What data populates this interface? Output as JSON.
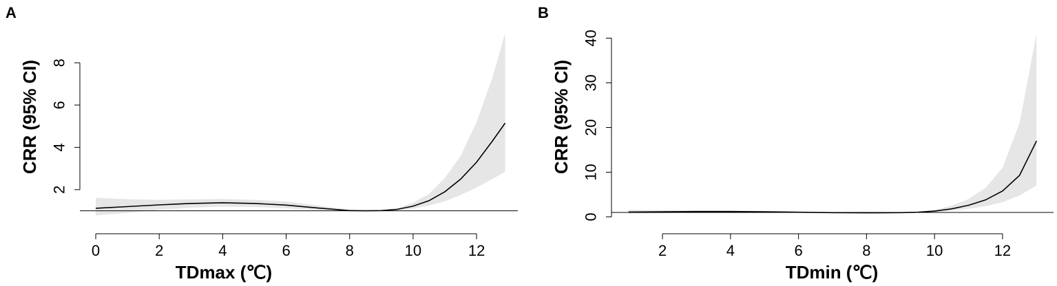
{
  "chart_data": [
    {
      "panel": "A",
      "type": "line",
      "xlabel": "TDmax (℃)",
      "ylabel": "CRR (95% CI)",
      "xlim": [
        -0.5,
        13.3
      ],
      "ylim": [
        0.5,
        9.8
      ],
      "xticks": [
        0,
        2,
        4,
        6,
        8,
        10,
        12
      ],
      "yticks": [
        2,
        4,
        6,
        8
      ],
      "reference_y": 1,
      "series": [
        {
          "x": [
            0,
            1,
            2,
            3,
            4,
            5,
            6,
            7,
            8,
            8.5,
            9,
            9.5,
            10,
            10.5,
            11,
            11.5,
            12,
            12.5,
            12.9
          ],
          "y": [
            1.12,
            1.2,
            1.28,
            1.35,
            1.38,
            1.35,
            1.27,
            1.13,
            1.01,
            1.0,
            1.01,
            1.07,
            1.22,
            1.48,
            1.9,
            2.5,
            3.3,
            4.3,
            5.15
          ],
          "lower": [
            0.78,
            0.9,
            1.05,
            1.15,
            1.2,
            1.18,
            1.12,
            1.03,
            0.98,
            0.99,
            0.99,
            1.02,
            1.1,
            1.25,
            1.45,
            1.75,
            2.1,
            2.5,
            2.85
          ],
          "upper": [
            1.62,
            1.55,
            1.52,
            1.54,
            1.56,
            1.52,
            1.44,
            1.25,
            1.05,
            1.01,
            1.03,
            1.13,
            1.38,
            1.8,
            2.55,
            3.6,
            5.2,
            7.3,
            9.4
          ]
        }
      ]
    },
    {
      "panel": "B",
      "type": "line",
      "xlabel": "TDmin (℃)",
      "ylabel": "CRR (95% CI)",
      "xlim": [
        0.5,
        13.5
      ],
      "ylim": [
        -1,
        43
      ],
      "xticks": [
        2,
        4,
        6,
        8,
        10,
        12
      ],
      "yticks": [
        0,
        10,
        20,
        30,
        40
      ],
      "reference_y": 1,
      "series": [
        {
          "x": [
            1,
            2,
            3,
            4,
            5,
            6,
            7,
            8,
            9,
            9.5,
            10,
            10.5,
            11,
            11.5,
            12,
            12.5,
            13
          ],
          "y": [
            1.1,
            1.15,
            1.2,
            1.2,
            1.15,
            1.05,
            0.95,
            0.9,
            0.95,
            1.05,
            1.3,
            1.8,
            2.6,
            3.8,
            5.8,
            9.3,
            17.0
          ],
          "lower": [
            0.7,
            0.85,
            0.95,
            1.0,
            0.95,
            0.9,
            0.88,
            0.87,
            0.9,
            0.95,
            1.1,
            1.4,
            1.8,
            2.4,
            3.3,
            4.8,
            7.0
          ],
          "upper": [
            1.6,
            1.5,
            1.5,
            1.45,
            1.35,
            1.2,
            1.05,
            0.95,
            1.0,
            1.15,
            1.6,
            2.5,
            4.0,
            6.5,
            11.0,
            21.0,
            41.0
          ]
        }
      ]
    }
  ]
}
